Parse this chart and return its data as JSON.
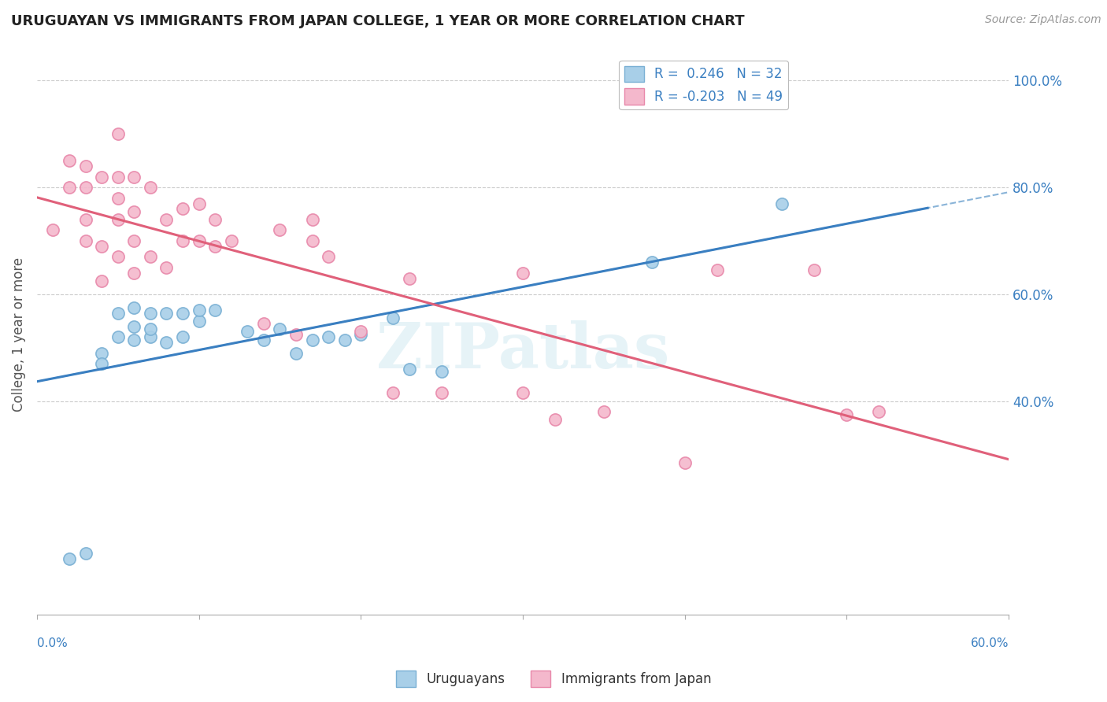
{
  "title": "URUGUAYAN VS IMMIGRANTS FROM JAPAN COLLEGE, 1 YEAR OR MORE CORRELATION CHART",
  "source_text": "Source: ZipAtlas.com",
  "ylabel": "College, 1 year or more",
  "ylabel_right_ticks": [
    "40.0%",
    "60.0%",
    "80.0%",
    "100.0%"
  ],
  "ylabel_right_values": [
    0.4,
    0.6,
    0.8,
    1.0
  ],
  "xmin": 0.0,
  "xmax": 0.6,
  "ymin": 0.0,
  "ymax": 1.05,
  "blue_R": "0.246",
  "blue_N": "32",
  "pink_R": "-0.203",
  "pink_N": "49",
  "blue_color": "#a8cfe8",
  "pink_color": "#f4b8cc",
  "blue_scatter_edge": "#7ab0d4",
  "pink_scatter_edge": "#e888aa",
  "blue_trend_color": "#3a7fc1",
  "pink_trend_color": "#e0607a",
  "dashed_color": "#8ab4d8",
  "watermark": "ZIPatlas",
  "blue_points_x": [
    0.02,
    0.03,
    0.04,
    0.04,
    0.05,
    0.05,
    0.06,
    0.06,
    0.06,
    0.07,
    0.07,
    0.07,
    0.08,
    0.08,
    0.09,
    0.09,
    0.1,
    0.1,
    0.11,
    0.13,
    0.14,
    0.15,
    0.16,
    0.17,
    0.18,
    0.19,
    0.2,
    0.22,
    0.23,
    0.25,
    0.38,
    0.46
  ],
  "blue_points_y": [
    0.105,
    0.115,
    0.49,
    0.47,
    0.52,
    0.565,
    0.515,
    0.54,
    0.575,
    0.52,
    0.535,
    0.565,
    0.51,
    0.565,
    0.52,
    0.565,
    0.55,
    0.57,
    0.57,
    0.53,
    0.515,
    0.535,
    0.49,
    0.515,
    0.52,
    0.515,
    0.525,
    0.555,
    0.46,
    0.455,
    0.66,
    0.77
  ],
  "pink_points_x": [
    0.01,
    0.02,
    0.02,
    0.03,
    0.03,
    0.03,
    0.03,
    0.04,
    0.04,
    0.04,
    0.05,
    0.05,
    0.05,
    0.05,
    0.05,
    0.06,
    0.06,
    0.06,
    0.06,
    0.07,
    0.07,
    0.08,
    0.08,
    0.09,
    0.09,
    0.1,
    0.1,
    0.11,
    0.11,
    0.12,
    0.14,
    0.15,
    0.16,
    0.17,
    0.17,
    0.18,
    0.2,
    0.22,
    0.23,
    0.25,
    0.3,
    0.3,
    0.32,
    0.35,
    0.4,
    0.42,
    0.48,
    0.5,
    0.52
  ],
  "pink_points_y": [
    0.72,
    0.8,
    0.85,
    0.7,
    0.74,
    0.8,
    0.84,
    0.625,
    0.69,
    0.82,
    0.67,
    0.74,
    0.78,
    0.82,
    0.9,
    0.64,
    0.7,
    0.755,
    0.82,
    0.67,
    0.8,
    0.65,
    0.74,
    0.7,
    0.76,
    0.7,
    0.77,
    0.69,
    0.74,
    0.7,
    0.545,
    0.72,
    0.525,
    0.7,
    0.74,
    0.67,
    0.53,
    0.415,
    0.63,
    0.415,
    0.415,
    0.64,
    0.365,
    0.38,
    0.285,
    0.645,
    0.645,
    0.375,
    0.38
  ],
  "legend_blue_label": "Uruguayans",
  "legend_pink_label": "Immigrants from Japan",
  "grid_color": "#cccccc",
  "background_color": "#ffffff"
}
